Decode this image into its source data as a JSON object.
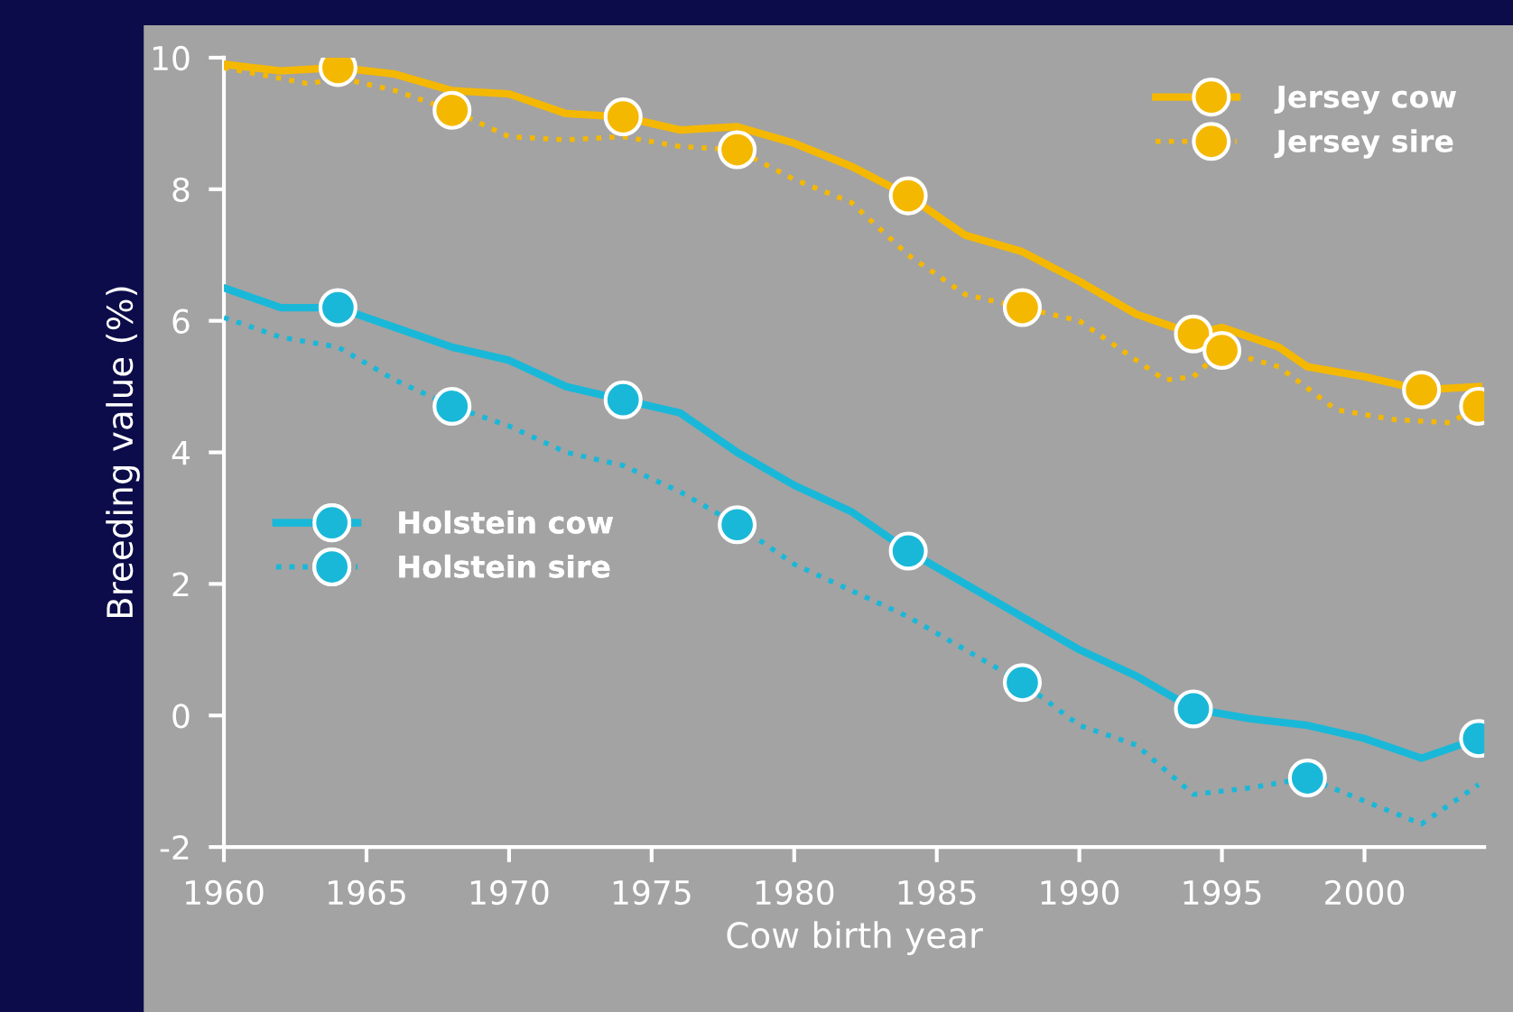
{
  "chart_data": {
    "type": "line",
    "xlabel": "Cow birth year",
    "ylabel": "Breeding value (%)",
    "xlim": [
      1960,
      2004.2
    ],
    "ylim": [
      -2,
      10
    ],
    "xticks": [
      1960,
      1965,
      1970,
      1975,
      1980,
      1985,
      1990,
      1995,
      2000
    ],
    "yticks": [
      -2,
      0,
      2,
      4,
      6,
      8,
      10
    ],
    "grid": false,
    "legend": [
      "top right",
      "center left"
    ],
    "series": [
      {
        "name": "Jersey cow",
        "color": "#f5b800",
        "line_style": "solid",
        "x": [
          1960,
          1962,
          1964,
          1966,
          1968,
          1970,
          1972,
          1974,
          1976,
          1978,
          1980,
          1982,
          1984,
          1986,
          1988,
          1990,
          1992,
          1994,
          1995,
          1997,
          1998,
          2000,
          2002,
          2004
        ],
        "values": [
          9.9,
          9.8,
          9.85,
          9.75,
          9.5,
          9.45,
          9.15,
          9.1,
          8.9,
          8.95,
          8.7,
          8.35,
          7.9,
          7.3,
          7.05,
          6.6,
          6.1,
          5.8,
          5.9,
          5.6,
          5.3,
          5.15,
          4.95,
          5.0
        ]
      },
      {
        "name": "Jersey sire",
        "color": "#f5b800",
        "line_style": "dotted",
        "x": [
          1960,
          1963,
          1964,
          1966,
          1968,
          1970,
          1972,
          1974,
          1976,
          1978,
          1980,
          1982,
          1984,
          1986,
          1988,
          1990,
          1992,
          1993,
          1994,
          1995,
          1997,
          1999,
          2001,
          2003,
          2004
        ],
        "values": [
          9.85,
          9.6,
          9.7,
          9.5,
          9.2,
          8.8,
          8.75,
          8.8,
          8.65,
          8.6,
          8.15,
          7.8,
          7.0,
          6.4,
          6.2,
          6.0,
          5.4,
          5.1,
          5.15,
          5.55,
          5.3,
          4.65,
          4.5,
          4.45,
          4.7
        ]
      },
      {
        "name": "Holstein cow",
        "color": "#1ab8d8",
        "line_style": "solid",
        "x": [
          1960,
          1962,
          1964,
          1966,
          1968,
          1970,
          1972,
          1974,
          1976,
          1978,
          1980,
          1982,
          1984,
          1986,
          1988,
          1990,
          1992,
          1994,
          1996,
          1998,
          2000,
          2002,
          2004
        ],
        "values": [
          6.5,
          6.2,
          6.2,
          5.9,
          5.6,
          5.4,
          5.0,
          4.8,
          4.6,
          4.0,
          3.5,
          3.1,
          2.5,
          2.0,
          1.5,
          1.0,
          0.6,
          0.1,
          -0.05,
          -0.15,
          -0.35,
          -0.65,
          -0.35
        ]
      },
      {
        "name": "Holstein sire",
        "color": "#1ab8d8",
        "line_style": "dotted",
        "x": [
          1960,
          1962,
          1964,
          1966,
          1968,
          1970,
          1972,
          1974,
          1976,
          1978,
          1980,
          1982,
          1984,
          1986,
          1988,
          1990,
          1992,
          1994,
          1996,
          1998,
          2000,
          2002,
          2004
        ],
        "values": [
          6.05,
          5.75,
          5.6,
          5.1,
          4.7,
          4.4,
          4.0,
          3.8,
          3.4,
          2.9,
          2.3,
          1.9,
          1.5,
          1.0,
          0.5,
          -0.15,
          -0.45,
          -1.2,
          -1.1,
          -0.95,
          -1.3,
          -1.65,
          -1.05
        ]
      }
    ]
  }
}
